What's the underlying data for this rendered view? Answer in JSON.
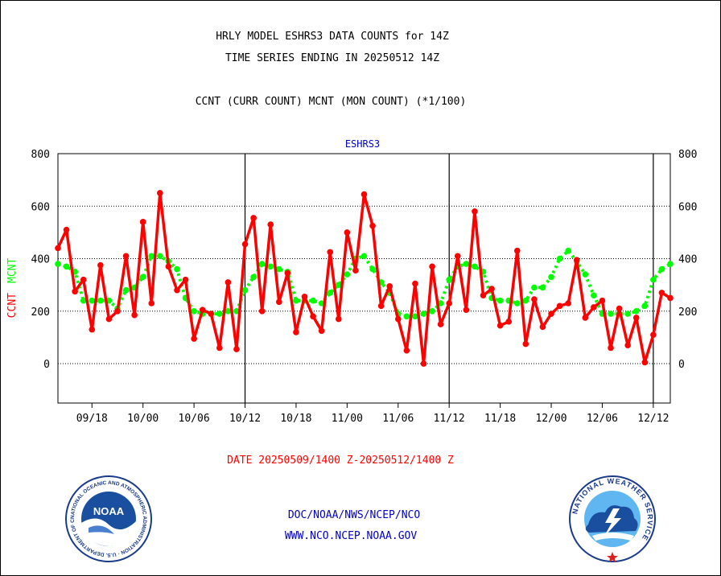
{
  "header": {
    "title_line1": "HRLY MODEL ESHRS3 DATA COUNTS for 14Z",
    "title_line2": "TIME SERIES ENDING IN 20250512 14Z",
    "subtitle": "CCNT (CURR COUNT) MCNT (MON COUNT) (*1/100)"
  },
  "chart_data": {
    "type": "line",
    "title": "ESHRS3",
    "ylabel_left_ccnt": "CCNT",
    "ylabel_left_mcnt": "MCNT",
    "ylim": [
      -150,
      800
    ],
    "yticks": [
      0,
      200,
      400,
      600,
      800
    ],
    "xlim": [
      0,
      72
    ],
    "x_tick_labels": [
      "09/18",
      "10/00",
      "10/06",
      "10/12",
      "10/18",
      "11/00",
      "11/06",
      "11/12",
      "11/18",
      "12/00",
      "12/06",
      "12/12"
    ],
    "x_tick_positions": [
      4,
      10,
      16,
      22,
      28,
      34,
      40,
      46,
      52,
      58,
      64,
      70
    ],
    "day_separators": [
      22,
      46,
      70
    ],
    "grid": "horizontal",
    "colors": {
      "ccnt": "#ff0000",
      "mcnt": "#00ff00",
      "title": "#0000cc"
    },
    "series": [
      {
        "name": "CCNT",
        "values": [
          440,
          510,
          275,
          320,
          130,
          375,
          170,
          200,
          410,
          185,
          540,
          230,
          650,
          370,
          280,
          320,
          95,
          205,
          190,
          60,
          310,
          55,
          455,
          555,
          200,
          530,
          235,
          345,
          120,
          255,
          180,
          125,
          425,
          170,
          500,
          355,
          645,
          525,
          220,
          295,
          170,
          50,
          305,
          0,
          370,
          150,
          230,
          410,
          205,
          580,
          260,
          285,
          145,
          160,
          430,
          75,
          245,
          140,
          190,
          220,
          230,
          395,
          175,
          215,
          240,
          60,
          210,
          70,
          175,
          5,
          110,
          270,
          250
        ]
      },
      {
        "name": "MCNT",
        "values": [
          380,
          370,
          350,
          240,
          240,
          240,
          240,
          210,
          280,
          290,
          330,
          410,
          410,
          390,
          360,
          250,
          200,
          190,
          190,
          190,
          200,
          200,
          280,
          330,
          380,
          370,
          360,
          350,
          240,
          240,
          240,
          230,
          270,
          300,
          340,
          400,
          410,
          360,
          310,
          270,
          190,
          180,
          180,
          190,
          200,
          230,
          320,
          370,
          380,
          370,
          350,
          250,
          240,
          240,
          230,
          240,
          290,
          290,
          330,
          400,
          430,
          390,
          340,
          260,
          190,
          190,
          190,
          190,
          200,
          220,
          320,
          360,
          380
        ]
      }
    ]
  },
  "footer": {
    "date_range": "DATE 20250509/1400 Z-20250512/1400 Z",
    "org_line": "DOC/NOAA/NWS/NCEP/NCO",
    "url_line": "WWW.NCO.NCEP.NOAA.GOV",
    "noaa_logo_text": "NOAA",
    "noaa_ring_text": "NATIONAL OCEANIC AND ATMOSPHERIC ADMINISTRATION · U.S. DEPARTMENT OF COMMERCE",
    "nws_ring_text": "NATIONAL WEATHER SERVICE"
  }
}
